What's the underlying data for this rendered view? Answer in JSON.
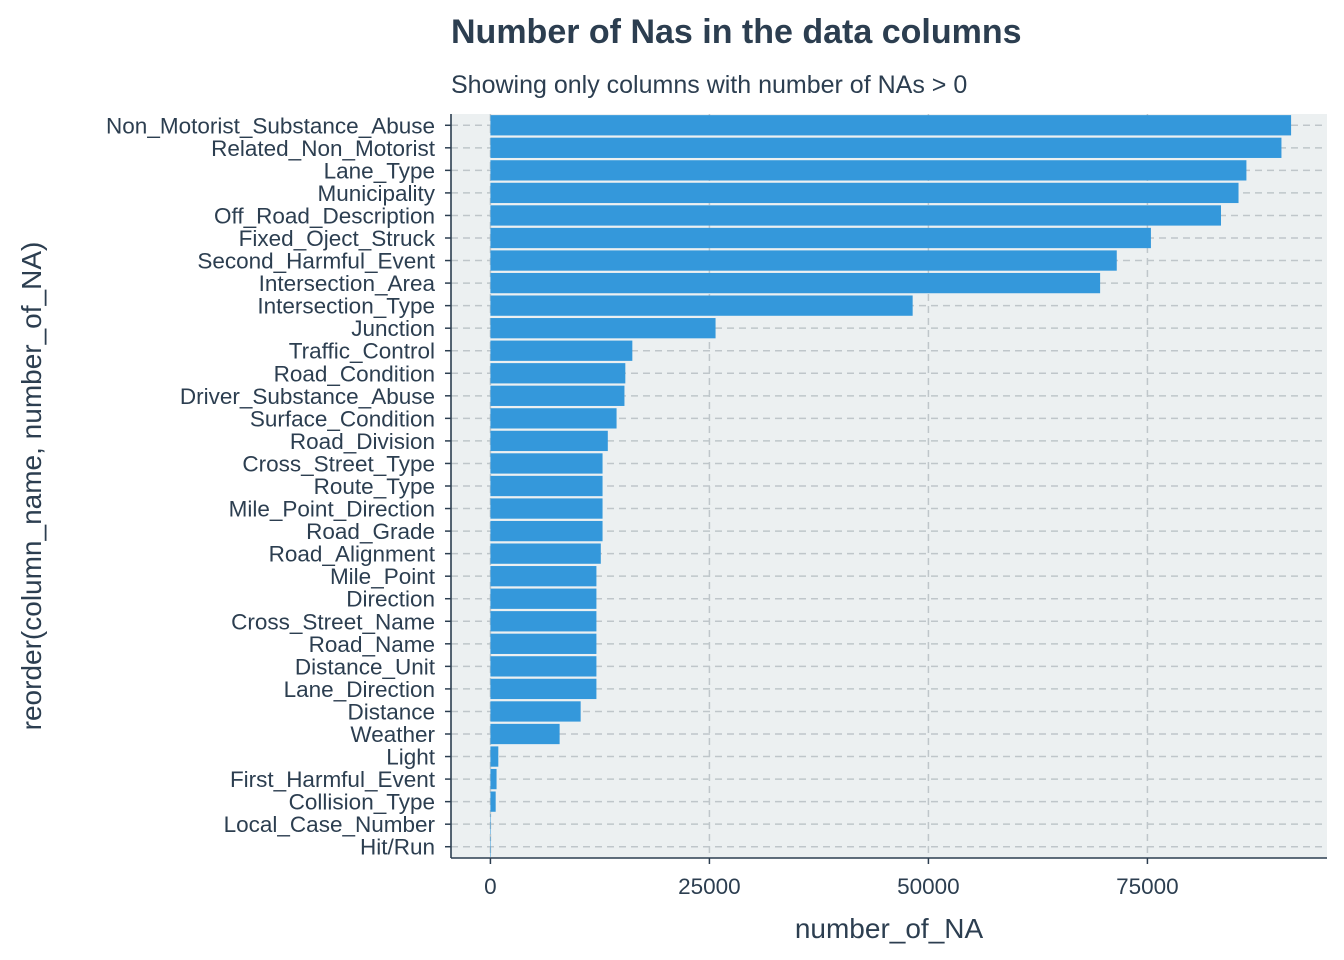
{
  "chart_data": {
    "type": "bar",
    "orientation": "horizontal",
    "title": "Number of Nas in the data columns",
    "subtitle": "Showing only columns with number of NAs > 0",
    "xlabel": "number_of_NA",
    "ylabel": "reorder(column_name, number_of_NA)",
    "xlim": [
      -4500,
      95500
    ],
    "xticks": [
      0,
      25000,
      50000,
      75000
    ],
    "xtick_labels": [
      "0",
      "25000",
      "50000",
      "75000"
    ],
    "grid": true,
    "legend": "none",
    "colors": {
      "bar": "#3498db",
      "panel": "#ecf0f1",
      "text": "#2c3e50",
      "grid": "#bfc6ca"
    },
    "categories": [
      "Non_Motorist_Substance_Abuse",
      "Related_Non_Motorist",
      "Lane_Type",
      "Municipality",
      "Off_Road_Description",
      "Fixed_Oject_Struck",
      "Second_Harmful_Event",
      "Intersection_Area",
      "Intersection_Type",
      "Junction",
      "Traffic_Control",
      "Road_Condition",
      "Driver_Substance_Abuse",
      "Surface_Condition",
      "Road_Division",
      "Cross_Street_Type",
      "Route_Type",
      "Mile_Point_Direction",
      "Road_Grade",
      "Road_Alignment",
      "Mile_Point",
      "Direction",
      "Cross_Street_Name",
      "Road_Name",
      "Distance_Unit",
      "Lane_Direction",
      "Distance",
      "Weather",
      "Light",
      "First_Harmful_Event",
      "Collision_Type",
      "Local_Case_Number",
      "Hit/Run"
    ],
    "values": [
      91400,
      90300,
      86300,
      85400,
      83400,
      75400,
      71500,
      69600,
      48200,
      25700,
      16200,
      15400,
      15300,
      14400,
      13400,
      12800,
      12800,
      12800,
      12800,
      12600,
      12100,
      12100,
      12100,
      12100,
      12100,
      12100,
      10300,
      7900,
      900,
      700,
      600,
      20,
      10
    ]
  }
}
